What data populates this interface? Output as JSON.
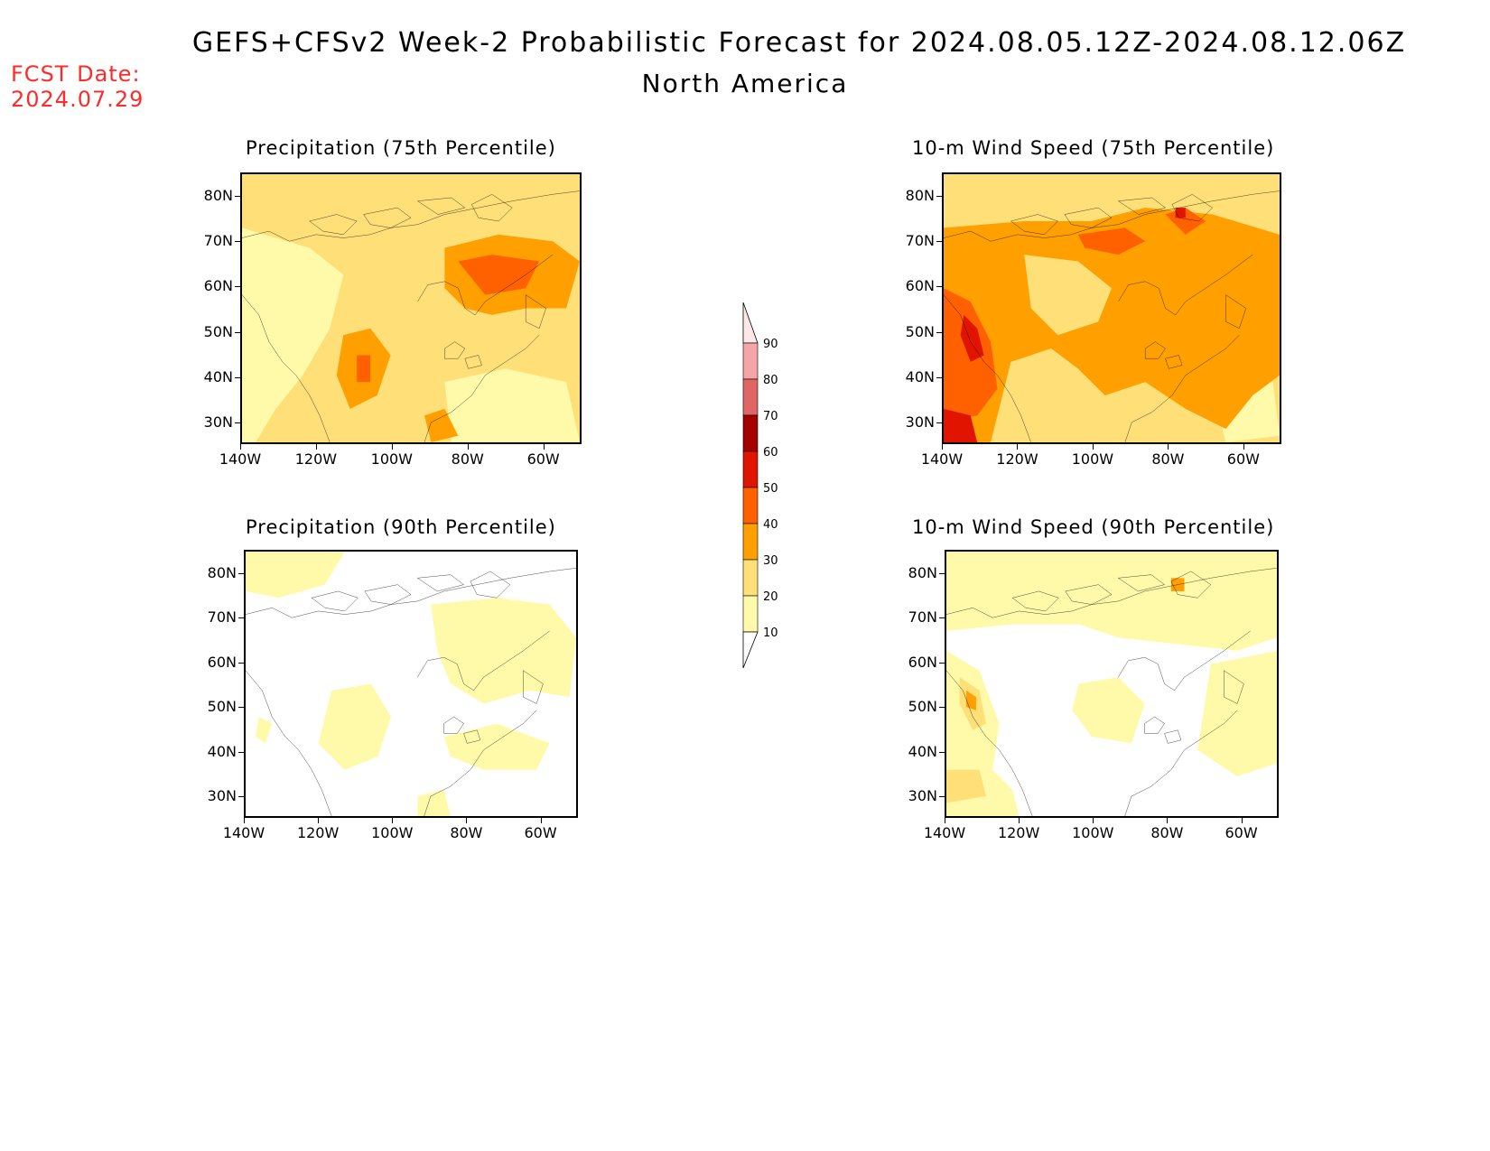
{
  "header": {
    "title_line1": "GEFS+CFSv2 Week-2 Probabilistic Forecast for 2024.08.05.12Z-2024.08.12.06Z",
    "title_line2": "North America",
    "fcst_label_line1": "FCST Date:",
    "fcst_label_line2": "2024.07.29"
  },
  "axes": {
    "lat_labels": [
      "80N",
      "70N",
      "60N",
      "50N",
      "40N",
      "30N"
    ],
    "lon_labels": [
      "140W",
      "120W",
      "100W",
      "80W",
      "60W"
    ]
  },
  "panels": [
    {
      "id": "precip75",
      "title": "Precipitation (75th Percentile)",
      "intensity": 2
    },
    {
      "id": "wind75",
      "title": "10-m Wind Speed (75th Percentile)",
      "intensity": 3
    },
    {
      "id": "precip90",
      "title": "Precipitation (90th Percentile)",
      "intensity": 0
    },
    {
      "id": "wind90",
      "title": "10-m Wind Speed (90th Percentile)",
      "intensity": 1
    }
  ],
  "colorbar": {
    "levels": [
      "10",
      "20",
      "30",
      "40",
      "50",
      "60",
      "70",
      "80",
      "90"
    ],
    "colors": [
      "#fffaaa",
      "#ffe078",
      "#ffa000",
      "#ff6000",
      "#e11400",
      "#a50000",
      "#e06666",
      "#f4a6a6",
      "#fde8e8"
    ]
  }
}
